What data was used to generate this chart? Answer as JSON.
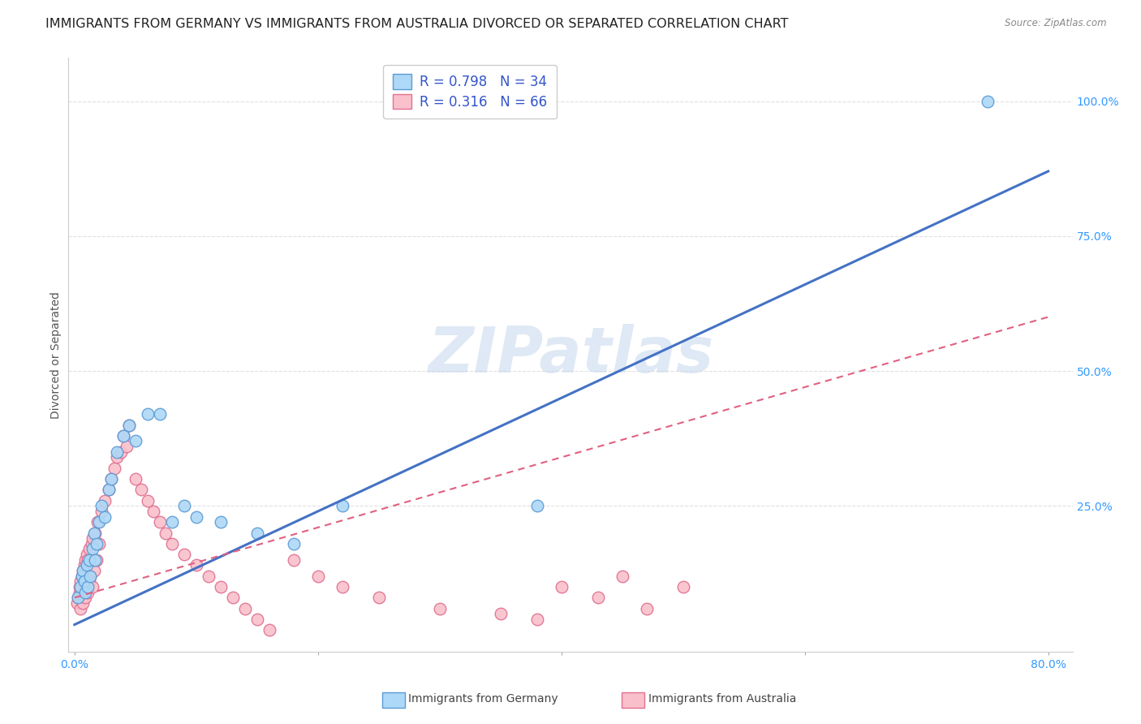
{
  "title": "IMMIGRANTS FROM GERMANY VS IMMIGRANTS FROM AUSTRALIA DIVORCED OR SEPARATED CORRELATION CHART",
  "source": "Source: ZipAtlas.com",
  "ylabel": "Divorced or Separated",
  "ytick_labels": [
    "25.0%",
    "50.0%",
    "75.0%",
    "100.0%"
  ],
  "ytick_values": [
    0.25,
    0.5,
    0.75,
    1.0
  ],
  "xtick_labels": [
    "0.0%",
    "80.0%"
  ],
  "xtick_values": [
    0.0,
    0.8
  ],
  "xlim": [
    -0.005,
    0.82
  ],
  "ylim": [
    -0.02,
    1.08
  ],
  "germany_color": "#ADD8F7",
  "australia_color": "#F9C0CB",
  "germany_edge_color": "#5B9BD5",
  "australia_edge_color": "#E07090",
  "line_germany_color": "#4472C4",
  "line_australia_color": "#E06080",
  "legend_germany_label": "R = 0.798   N = 34",
  "legend_australia_label": "R = 0.316   N = 66",
  "watermark": "ZIPatlas",
  "background_color": "#ffffff",
  "grid_color": "#e0e0e0",
  "title_fontsize": 11.5,
  "axis_label_fontsize": 10,
  "tick_fontsize": 10,
  "legend_fontsize": 12,
  "germany_line_x0": 0.0,
  "germany_line_y0": 0.03,
  "germany_line_x1": 0.8,
  "germany_line_y1": 0.87,
  "australia_line_x0": 0.0,
  "australia_line_y0": 0.08,
  "australia_line_x1": 0.8,
  "australia_line_y1": 0.6,
  "germany_x": [
    0.003,
    0.005,
    0.006,
    0.007,
    0.008,
    0.009,
    0.01,
    0.011,
    0.012,
    0.013,
    0.015,
    0.016,
    0.017,
    0.018,
    0.02,
    0.022,
    0.025,
    0.028,
    0.03,
    0.035,
    0.04,
    0.045,
    0.05,
    0.06,
    0.07,
    0.08,
    0.09,
    0.1,
    0.12,
    0.15,
    0.18,
    0.22,
    0.38,
    0.75
  ],
  "germany_y": [
    0.08,
    0.1,
    0.12,
    0.13,
    0.11,
    0.09,
    0.14,
    0.1,
    0.15,
    0.12,
    0.17,
    0.2,
    0.15,
    0.18,
    0.22,
    0.25,
    0.23,
    0.28,
    0.3,
    0.35,
    0.38,
    0.4,
    0.37,
    0.42,
    0.42,
    0.22,
    0.25,
    0.23,
    0.22,
    0.2,
    0.18,
    0.25,
    0.25,
    1.0
  ],
  "australia_x": [
    0.002,
    0.003,
    0.004,
    0.004,
    0.005,
    0.005,
    0.006,
    0.006,
    0.007,
    0.007,
    0.008,
    0.008,
    0.009,
    0.009,
    0.01,
    0.01,
    0.011,
    0.011,
    0.012,
    0.012,
    0.013,
    0.014,
    0.015,
    0.015,
    0.016,
    0.017,
    0.018,
    0.019,
    0.02,
    0.022,
    0.025,
    0.028,
    0.03,
    0.033,
    0.035,
    0.038,
    0.04,
    0.043,
    0.045,
    0.05,
    0.055,
    0.06,
    0.065,
    0.07,
    0.075,
    0.08,
    0.09,
    0.1,
    0.11,
    0.12,
    0.13,
    0.14,
    0.15,
    0.16,
    0.18,
    0.2,
    0.22,
    0.25,
    0.3,
    0.35,
    0.38,
    0.4,
    0.43,
    0.45,
    0.47,
    0.5
  ],
  "australia_y": [
    0.07,
    0.08,
    0.09,
    0.1,
    0.06,
    0.11,
    0.08,
    0.12,
    0.07,
    0.13,
    0.09,
    0.14,
    0.08,
    0.15,
    0.1,
    0.16,
    0.09,
    0.15,
    0.11,
    0.17,
    0.12,
    0.18,
    0.1,
    0.19,
    0.13,
    0.2,
    0.15,
    0.22,
    0.18,
    0.24,
    0.26,
    0.28,
    0.3,
    0.32,
    0.34,
    0.35,
    0.38,
    0.36,
    0.4,
    0.3,
    0.28,
    0.26,
    0.24,
    0.22,
    0.2,
    0.18,
    0.16,
    0.14,
    0.12,
    0.1,
    0.08,
    0.06,
    0.04,
    0.02,
    0.15,
    0.12,
    0.1,
    0.08,
    0.06,
    0.05,
    0.04,
    0.1,
    0.08,
    0.12,
    0.06,
    0.1
  ]
}
